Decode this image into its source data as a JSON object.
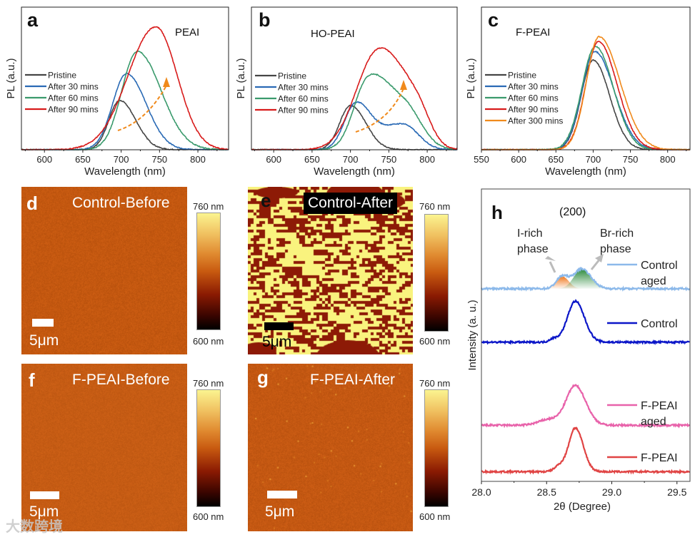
{
  "chart_data": [
    {
      "panel": "a",
      "type": "line",
      "title": "PEAI",
      "xlabel": "Wavelength (nm)",
      "ylabel": "PL (a.u.)",
      "xlim": [
        570,
        840
      ],
      "ylim": [
        0,
        1.16
      ],
      "xticks": [
        600,
        650,
        700,
        750,
        800
      ],
      "model": "asymmetric gaussian components [center_nm, height, sigma_left, sigma_right]",
      "series": [
        {
          "name": "Pristine",
          "color": "#454545",
          "peaks": [
            [
              698,
              0.4,
              14,
              21
            ]
          ]
        },
        {
          "name": "After 30 mins",
          "color": "#2a6ab5",
          "peaks": [
            [
              707,
              0.62,
              18,
              25.5
            ]
          ]
        },
        {
          "name": "After 60 mins",
          "color": "#3a9a6c",
          "peaks": [
            [
              721,
              0.8,
              20,
              31
            ]
          ]
        },
        {
          "name": "After 90 mins",
          "color": "#d81b1b",
          "peaks": [
            [
              745,
              1.0,
              36,
              28
            ]
          ]
        }
      ],
      "annotation": "arrow: red-shift with time"
    },
    {
      "panel": "b",
      "type": "line",
      "title": "HO-PEAI",
      "xlabel": "Wavelength (nm)",
      "ylabel": "PL (a.u.)",
      "xlim": [
        571,
        839
      ],
      "ylim": [
        0,
        1.16
      ],
      "xticks": [
        600,
        650,
        700,
        750,
        800
      ],
      "series": [
        {
          "name": "Pristine",
          "color": "#454545",
          "peaks": [
            [
              700,
              0.36,
              14,
              20
            ]
          ]
        },
        {
          "name": "After 30 mins",
          "color": "#2a6ab5",
          "peaks": [
            [
              707,
              0.36,
              15,
              19
            ],
            [
              768,
              0.21,
              30,
              20
            ]
          ]
        },
        {
          "name": "After 60 mins",
          "color": "#3a9a6c",
          "peaks": [
            [
              722,
              0.5,
              18,
              25
            ],
            [
              770,
              0.34,
              30,
              22
            ]
          ]
        },
        {
          "name": "After 90 mins",
          "color": "#d81b1b",
          "peaks": [
            [
              735,
              0.78,
              28,
              30
            ],
            [
              785,
              0.3,
              25,
              18
            ]
          ]
        }
      ],
      "annotation": "arrow: low-energy shoulder growth"
    },
    {
      "panel": "c",
      "type": "line",
      "title": "F-PEAI",
      "xlabel": "Wavelength (nm)",
      "ylabel": "PL (a.u.)",
      "xlim": [
        550,
        830
      ],
      "ylim": [
        0,
        1.16
      ],
      "xticks": [
        550,
        600,
        650,
        700,
        750,
        800
      ],
      "series": [
        {
          "name": "Pristine",
          "color": "#454545",
          "peaks": [
            [
              700,
              0.73,
              16,
              22
            ]
          ]
        },
        {
          "name": "After 30 mins",
          "color": "#2a6ab5",
          "peaks": [
            [
              702,
              0.8,
              17,
              26
            ]
          ]
        },
        {
          "name": "After 60 mins",
          "color": "#3a9a6c",
          "peaks": [
            [
              703,
              0.84,
              18,
              24
            ]
          ]
        },
        {
          "name": "After 90 mins",
          "color": "#d81b1b",
          "peaks": [
            [
              707,
              0.88,
              17,
              25
            ]
          ]
        },
        {
          "name": "After 300 mins",
          "color": "#f08a1c",
          "peaks": [
            [
              708,
              0.92,
              17,
              28
            ]
          ]
        }
      ]
    },
    {
      "panel": "h",
      "type": "line",
      "title": "(200)",
      "xlabel": "2θ (Degree)",
      "ylabel": "Intensity (a. u.)",
      "xlim": [
        28.0,
        29.6
      ],
      "ylim": [
        0,
        100
      ],
      "xticks": [
        "28.0",
        "28.5",
        "29.0",
        "29.5"
      ],
      "model": "offset baseline + asymmetric gaussian components [center_deg, height, sigma_left, sigma_right]",
      "series": [
        {
          "name": "Control aged",
          "label_lines": [
            "Control",
            "aged"
          ],
          "color": "#8cb9ea",
          "baseline": 65.9,
          "peaks": [
            [
              28.62,
              4.2,
              0.045,
              0.05
            ],
            [
              28.77,
              6.8,
              0.06,
              0.07
            ]
          ]
        },
        {
          "name": "Control",
          "label_lines": [
            "Control"
          ],
          "color": "#0b16c8",
          "baseline": 47.6,
          "peaks": [
            [
              28.72,
              14.0,
              0.06,
              0.07
            ],
            [
              28.55,
              1.2,
              0.03,
              0.05
            ]
          ]
        },
        {
          "name": "F-PEAI aged",
          "label_lines": [
            "F-PEAI",
            " aged"
          ],
          "color": "#e862aa",
          "baseline": 19.2,
          "peaks": [
            [
              28.72,
              13.5,
              0.07,
              0.08
            ],
            [
              28.52,
              2.0,
              0.08,
              0.08
            ]
          ]
        },
        {
          "name": "F-PEAI",
          "label_lines": [
            "F-PEAI"
          ],
          "color": "#e04444",
          "baseline": 3.3,
          "peaks": [
            [
              28.72,
              15.0,
              0.05,
              0.06
            ],
            [
              28.6,
              2.0,
              0.04,
              0.04
            ]
          ]
        }
      ],
      "fitted_components": [
        {
          "name": "I-rich phase",
          "label_lines": [
            "I-rich",
            "phase"
          ],
          "color": "#f07a20",
          "center": 28.62
        },
        {
          "name": "Br-rich phase",
          "label_lines": [
            "Br-rich",
            "phase"
          ],
          "color": "#2a8a3a",
          "center": 28.77
        }
      ]
    }
  ],
  "afm_panels": [
    {
      "letter": "d",
      "title": "Control-Before",
      "scale_bar": "5μm",
      "colorbar_max": "760 nm",
      "colorbar_min": "600 nm"
    },
    {
      "letter": "e",
      "title": "Control-After",
      "scale_bar": "5μm",
      "colorbar_max": "760 nm",
      "colorbar_min": "600 nm"
    },
    {
      "letter": "f",
      "title": "F-PEAI-Before",
      "scale_bar": "5μm",
      "colorbar_max": "760 nm",
      "colorbar_min": "600 nm"
    },
    {
      "letter": "g",
      "title": "F-PEAI-After",
      "scale_bar": "5μm",
      "colorbar_max": "760 nm",
      "colorbar_min": "600 nm"
    }
  ],
  "watermark": "大数跨境"
}
